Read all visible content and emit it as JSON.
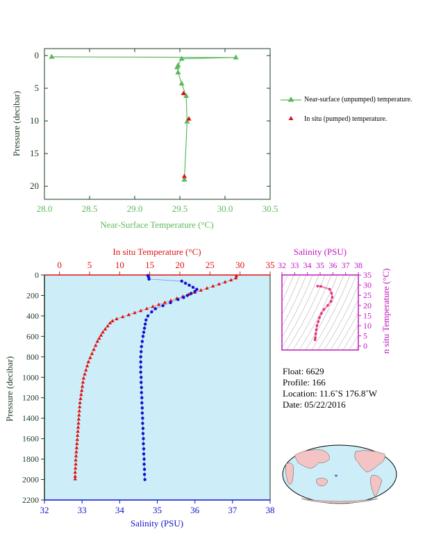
{
  "chart_data": [
    {
      "type": "line",
      "xlabel": "Near-Surface Temperature (°C)",
      "ylabel": "Pressure (decibar)",
      "xlim": [
        28.0,
        30.5
      ],
      "ylim": [
        0,
        22
      ],
      "xticks": [
        "28.0",
        "28.5",
        "29.0",
        "29.5",
        "30.0",
        "30.5"
      ],
      "yticks": [
        "0",
        "5",
        "10",
        "15",
        "20"
      ],
      "y_inverted": true,
      "legend_position": "right",
      "series": [
        {
          "name": "Near-surface (unpumped) temperature.",
          "marker": "triangle",
          "color": "#5cb85c",
          "points": [
            [
              28.08,
              0.2
            ],
            [
              30.12,
              0.3
            ],
            [
              29.52,
              0.5
            ],
            [
              29.48,
              1.5
            ],
            [
              29.47,
              1.8
            ],
            [
              29.48,
              2.6
            ],
            [
              29.52,
              4.3
            ],
            [
              29.57,
              6.2
            ],
            [
              29.58,
              10.1
            ],
            [
              29.55,
              19.0
            ]
          ]
        },
        {
          "name": "In situ (pumped) temperature.",
          "marker": "triangle",
          "color": "#dd1111",
          "points": [
            [
              29.54,
              5.8
            ],
            [
              29.6,
              9.7
            ],
            [
              29.55,
              18.5
            ]
          ]
        }
      ]
    },
    {
      "type": "scatter",
      "top_xlabel": "In situ Temperature (°C)",
      "bottom_xlabel": "Salinity (PSU)",
      "ylabel": "Pressure (decibar)",
      "temp_xlim": [
        -2.5,
        35
      ],
      "temp_ticks": [
        "0",
        "5",
        "10",
        "15",
        "20",
        "25",
        "30",
        "35"
      ],
      "sal_xlim": [
        32,
        38
      ],
      "sal_ticks": [
        "32",
        "33",
        "34",
        "35",
        "36",
        "37",
        "38"
      ],
      "ylim": [
        0,
        2200
      ],
      "yticks": [
        "0",
        "200",
        "400",
        "600",
        "800",
        "1000",
        "1200",
        "1400",
        "1600",
        "1800",
        "2000",
        "2200"
      ],
      "y_inverted": true,
      "temperature": {
        "color": "#dd1111",
        "points": [
          [
            29.4,
            10
          ],
          [
            29.3,
            30
          ],
          [
            28.5,
            50
          ],
          [
            27.5,
            70
          ],
          [
            26.5,
            90
          ],
          [
            25.5,
            110
          ],
          [
            24.5,
            130
          ],
          [
            23.5,
            150
          ],
          [
            22.5,
            170
          ],
          [
            21.5,
            190
          ],
          [
            20.5,
            210
          ],
          [
            19.5,
            230
          ],
          [
            18.5,
            250
          ],
          [
            17.5,
            270
          ],
          [
            16.5,
            290
          ],
          [
            15.5,
            310
          ],
          [
            14.5,
            330
          ],
          [
            13.5,
            350
          ],
          [
            12.5,
            370
          ],
          [
            11.5,
            390
          ],
          [
            10.5,
            410
          ],
          [
            9.5,
            430
          ],
          [
            8.8,
            450
          ],
          [
            8.4,
            470
          ],
          [
            8.0,
            500
          ],
          [
            7.6,
            530
          ],
          [
            7.2,
            560
          ],
          [
            6.9,
            590
          ],
          [
            6.6,
            620
          ],
          [
            6.3,
            650
          ],
          [
            6.0,
            690
          ],
          [
            5.7,
            730
          ],
          [
            5.4,
            770
          ],
          [
            5.1,
            810
          ],
          [
            4.8,
            850
          ],
          [
            4.6,
            890
          ],
          [
            4.4,
            930
          ],
          [
            4.2,
            970
          ],
          [
            4.0,
            1010
          ],
          [
            3.9,
            1050
          ],
          [
            3.8,
            1090
          ],
          [
            3.7,
            1130
          ],
          [
            3.6,
            1170
          ],
          [
            3.5,
            1210
          ],
          [
            3.4,
            1250
          ],
          [
            3.35,
            1290
          ],
          [
            3.3,
            1330
          ],
          [
            3.25,
            1370
          ],
          [
            3.2,
            1410
          ],
          [
            3.15,
            1450
          ],
          [
            3.1,
            1490
          ],
          [
            3.05,
            1530
          ],
          [
            3.0,
            1570
          ],
          [
            2.95,
            1610
          ],
          [
            2.9,
            1650
          ],
          [
            2.85,
            1690
          ],
          [
            2.8,
            1730
          ],
          [
            2.75,
            1770
          ],
          [
            2.7,
            1810
          ],
          [
            2.7,
            1850
          ],
          [
            2.65,
            1890
          ],
          [
            2.6,
            1930
          ],
          [
            2.6,
            1970
          ],
          [
            2.6,
            1995
          ]
        ]
      },
      "salinity": {
        "color": "#1111cc",
        "points": [
          [
            34.75,
            5
          ],
          [
            34.77,
            20
          ],
          [
            34.78,
            40
          ],
          [
            35.65,
            60
          ],
          [
            35.75,
            80
          ],
          [
            35.85,
            100
          ],
          [
            35.95,
            120
          ],
          [
            36.05,
            140
          ],
          [
            36.0,
            160
          ],
          [
            35.9,
            180
          ],
          [
            35.8,
            200
          ],
          [
            35.7,
            220
          ],
          [
            35.55,
            240
          ],
          [
            35.35,
            270
          ],
          [
            35.15,
            300
          ],
          [
            34.95,
            330
          ],
          [
            34.85,
            360
          ],
          [
            34.75,
            400
          ],
          [
            34.7,
            440
          ],
          [
            34.68,
            480
          ],
          [
            34.66,
            520
          ],
          [
            34.64,
            560
          ],
          [
            34.62,
            600
          ],
          [
            34.6,
            650
          ],
          [
            34.58,
            700
          ],
          [
            34.57,
            750
          ],
          [
            34.56,
            800
          ],
          [
            34.56,
            850
          ],
          [
            34.56,
            900
          ],
          [
            34.56,
            950
          ],
          [
            34.57,
            1000
          ],
          [
            34.57,
            1050
          ],
          [
            34.58,
            1100
          ],
          [
            34.58,
            1150
          ],
          [
            34.59,
            1200
          ],
          [
            34.59,
            1250
          ],
          [
            34.6,
            1300
          ],
          [
            34.6,
            1350
          ],
          [
            34.61,
            1400
          ],
          [
            34.61,
            1450
          ],
          [
            34.62,
            1500
          ],
          [
            34.62,
            1550
          ],
          [
            34.63,
            1600
          ],
          [
            34.63,
            1650
          ],
          [
            34.64,
            1700
          ],
          [
            34.64,
            1750
          ],
          [
            34.65,
            1800
          ],
          [
            34.65,
            1850
          ],
          [
            34.66,
            1900
          ],
          [
            34.66,
            1950
          ],
          [
            34.67,
            2000
          ]
        ]
      }
    },
    {
      "type": "scatter",
      "top_xlabel": "Salinity (PSU)",
      "right_ylabel": "In situ Temperature (°C)",
      "xlim": [
        32,
        38
      ],
      "ylim": [
        -2,
        35
      ],
      "xticks": [
        "32",
        "33",
        "34",
        "35",
        "36",
        "37",
        "38"
      ],
      "yticks": [
        "0",
        "5",
        "10",
        "15",
        "20",
        "25",
        "30",
        "35"
      ],
      "color": "#e0287a",
      "points": [
        [
          34.8,
          29.5
        ],
        [
          35.05,
          29.4
        ],
        [
          35.75,
          28
        ],
        [
          35.9,
          26
        ],
        [
          35.95,
          24
        ],
        [
          35.85,
          22
        ],
        [
          35.6,
          20
        ],
        [
          35.3,
          18
        ],
        [
          35.1,
          16
        ],
        [
          34.95,
          14
        ],
        [
          34.85,
          12
        ],
        [
          34.75,
          10
        ],
        [
          34.7,
          8
        ],
        [
          34.65,
          6
        ],
        [
          34.62,
          4
        ],
        [
          34.6,
          3
        ]
      ]
    }
  ],
  "profile_info": {
    "float": "Float:  6629",
    "profile": "Profile:  166",
    "location": "Location:  11.6˚S  176.8˚W",
    "date": "Date:  05/22/2016"
  },
  "colors": {
    "green": "#5cb85c",
    "red": "#dd1111",
    "blue": "#1111cc",
    "magenta": "#e0287a",
    "plot_bg": "#cdeef9",
    "axis_dark": "#1a3a20"
  }
}
